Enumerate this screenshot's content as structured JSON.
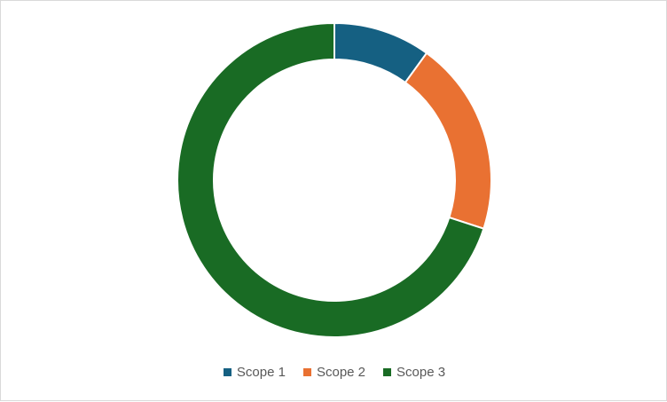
{
  "chart_data": {
    "type": "pie",
    "variant": "donut",
    "title": "",
    "series": [
      {
        "name": "Scope 1",
        "value": 10,
        "color": "#156082"
      },
      {
        "name": "Scope 2",
        "value": 20,
        "color": "#e97132"
      },
      {
        "name": "Scope 3",
        "value": 70,
        "color": "#196b24"
      }
    ],
    "legend_position": "bottom"
  }
}
